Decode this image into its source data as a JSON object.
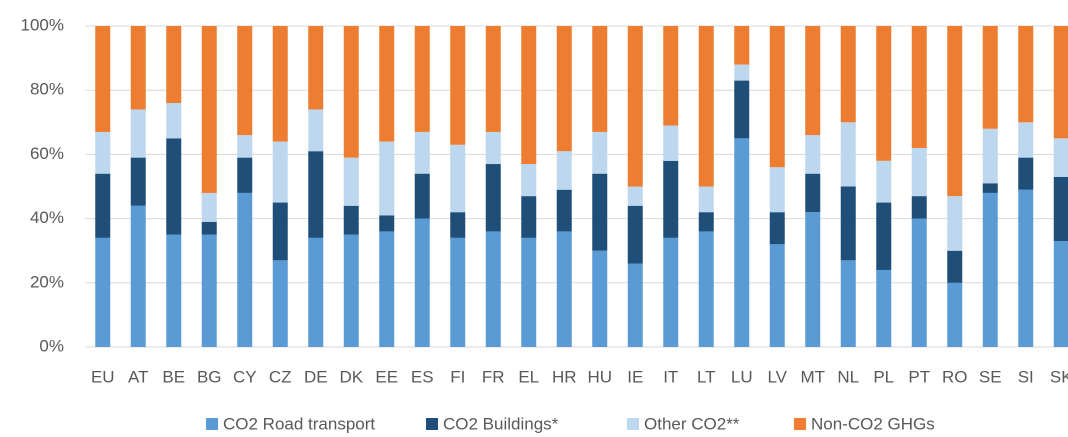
{
  "chart_data": {
    "type": "stacked_bar",
    "categories": [
      "EU",
      "AT",
      "BE",
      "BG",
      "CY",
      "CZ",
      "DE",
      "DK",
      "EE",
      "ES",
      "FI",
      "FR",
      "EL",
      "HR",
      "HU",
      "IE",
      "IT",
      "LT",
      "LU",
      "LV",
      "MT",
      "NL",
      "PL",
      "PT",
      "RO",
      "SE",
      "SI",
      "SK"
    ],
    "series": [
      {
        "name": "CO2 Road transport",
        "color": "#5b9bd5",
        "values": [
          34,
          44,
          35,
          35,
          48,
          27,
          34,
          35,
          36,
          40,
          34,
          36,
          34,
          36,
          30,
          26,
          34,
          36,
          65,
          32,
          42,
          27,
          24,
          40,
          20,
          48,
          49,
          33
        ]
      },
      {
        "name": "CO2 Buildings*",
        "color": "#1f4e79",
        "values": [
          20,
          15,
          30,
          4,
          11,
          18,
          27,
          9,
          5,
          14,
          8,
          21,
          13,
          13,
          24,
          18,
          24,
          6,
          18,
          10,
          12,
          23,
          21,
          7,
          10,
          3,
          10,
          20
        ]
      },
      {
        "name": "Other CO2**",
        "color": "#bdd7ee",
        "values": [
          13,
          15,
          11,
          9,
          7,
          19,
          13,
          15,
          23,
          13,
          21,
          10,
          10,
          12,
          13,
          6,
          11,
          8,
          5,
          14,
          12,
          20,
          13,
          15,
          17,
          17,
          11,
          12
        ]
      },
      {
        "name": "Non-CO2 GHGs",
        "color": "#ed7d31",
        "values": [
          33,
          26,
          24,
          52,
          34,
          36,
          26,
          41,
          36,
          33,
          37,
          33,
          43,
          39,
          33,
          50,
          31,
          50,
          12,
          44,
          34,
          30,
          42,
          38,
          53,
          32,
          30,
          35
        ]
      }
    ],
    "ylim": [
      0,
      100
    ],
    "yticks": [
      {
        "value": 0,
        "label": "0%"
      },
      {
        "value": 20,
        "label": "20%"
      },
      {
        "value": 40,
        "label": "40%"
      },
      {
        "value": 60,
        "label": "60%"
      },
      {
        "value": 80,
        "label": "80%"
      },
      {
        "value": 100,
        "label": "100%"
      }
    ],
    "grid": true,
    "legend": "bottom"
  }
}
